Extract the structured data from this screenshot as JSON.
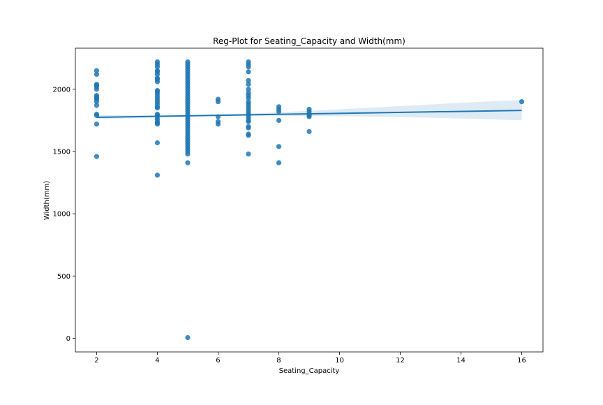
{
  "chart_data": {
    "type": "scatter",
    "title": "Reg-Plot for Seating_Capacity and Width(mm)",
    "xlabel": "Seating_Capacity",
    "ylabel": "Width(mm)",
    "xlim": [
      1.3,
      16.7
    ],
    "ylim": [
      -110,
      2330
    ],
    "xticks": [
      2,
      4,
      6,
      8,
      10,
      12,
      14,
      16
    ],
    "yticks": [
      0,
      500,
      1000,
      1500,
      2000
    ],
    "grid": false,
    "legend": "none",
    "colors": {
      "points": "#1f77b4",
      "line": "#1f77b4",
      "band": "#1f77b4"
    },
    "points": [
      [
        2,
        2150
      ],
      [
        2,
        2120
      ],
      [
        2,
        2040
      ],
      [
        2,
        2030
      ],
      [
        2,
        2020
      ],
      [
        2,
        2000
      ],
      [
        2,
        1950
      ],
      [
        2,
        1940
      ],
      [
        2,
        1930
      ],
      [
        2,
        1920
      ],
      [
        2,
        1900
      ],
      [
        2,
        1870
      ],
      [
        2,
        1800
      ],
      [
        2,
        1790
      ],
      [
        2,
        1720
      ],
      [
        2,
        1460
      ],
      [
        4,
        2220
      ],
      [
        4,
        2200
      ],
      [
        4,
        2180
      ],
      [
        4,
        2150
      ],
      [
        4,
        2140
      ],
      [
        4,
        2120
      ],
      [
        4,
        2090
      ],
      [
        4,
        2080
      ],
      [
        4,
        2060
      ],
      [
        4,
        1990
      ],
      [
        4,
        1980
      ],
      [
        4,
        1960
      ],
      [
        4,
        1940
      ],
      [
        4,
        1920
      ],
      [
        4,
        1900
      ],
      [
        4,
        1880
      ],
      [
        4,
        1860
      ],
      [
        4,
        1850
      ],
      [
        4,
        1800
      ],
      [
        4,
        1790
      ],
      [
        4,
        1780
      ],
      [
        4,
        1760
      ],
      [
        4,
        1740
      ],
      [
        4,
        1730
      ],
      [
        4,
        1720
      ],
      [
        4,
        1570
      ],
      [
        4,
        1310
      ],
      [
        5,
        2220
      ],
      [
        5,
        2200
      ],
      [
        5,
        2180
      ],
      [
        5,
        2160
      ],
      [
        5,
        2140
      ],
      [
        5,
        2120
      ],
      [
        5,
        2100
      ],
      [
        5,
        2080
      ],
      [
        5,
        2060
      ],
      [
        5,
        2040
      ],
      [
        5,
        2020
      ],
      [
        5,
        2000
      ],
      [
        5,
        1980
      ],
      [
        5,
        1960
      ],
      [
        5,
        1940
      ],
      [
        5,
        1920
      ],
      [
        5,
        1900
      ],
      [
        5,
        1880
      ],
      [
        5,
        1860
      ],
      [
        5,
        1840
      ],
      [
        5,
        1820
      ],
      [
        5,
        1800
      ],
      [
        5,
        1780
      ],
      [
        5,
        1760
      ],
      [
        5,
        1740
      ],
      [
        5,
        1720
      ],
      [
        5,
        1700
      ],
      [
        5,
        1680
      ],
      [
        5,
        1660
      ],
      [
        5,
        1640
      ],
      [
        5,
        1620
      ],
      [
        5,
        1600
      ],
      [
        5,
        1580
      ],
      [
        5,
        1560
      ],
      [
        5,
        1540
      ],
      [
        5,
        1520
      ],
      [
        5,
        1500
      ],
      [
        5,
        1480
      ],
      [
        5,
        1410
      ],
      [
        5,
        5
      ],
      [
        6,
        1920
      ],
      [
        6,
        1900
      ],
      [
        6,
        1780
      ],
      [
        6,
        1740
      ],
      [
        6,
        1720
      ],
      [
        7,
        2220
      ],
      [
        7,
        2200
      ],
      [
        7,
        2180
      ],
      [
        7,
        2140
      ],
      [
        7,
        2070
      ],
      [
        7,
        2040
      ],
      [
        7,
        2000
      ],
      [
        7,
        1970
      ],
      [
        7,
        1950
      ],
      [
        7,
        1930
      ],
      [
        7,
        1900
      ],
      [
        7,
        1880
      ],
      [
        7,
        1860
      ],
      [
        7,
        1840
      ],
      [
        7,
        1820
      ],
      [
        7,
        1800
      ],
      [
        7,
        1790
      ],
      [
        7,
        1770
      ],
      [
        7,
        1750
      ],
      [
        7,
        1740
      ],
      [
        7,
        1700
      ],
      [
        7,
        1690
      ],
      [
        7,
        1640
      ],
      [
        7,
        1630
      ],
      [
        7,
        1480
      ],
      [
        8,
        1860
      ],
      [
        8,
        1840
      ],
      [
        8,
        1820
      ],
      [
        8,
        1750
      ],
      [
        8,
        1540
      ],
      [
        8,
        1410
      ],
      [
        9,
        1840
      ],
      [
        9,
        1820
      ],
      [
        9,
        1800
      ],
      [
        9,
        1790
      ],
      [
        9,
        1780
      ],
      [
        9,
        1660
      ],
      [
        16,
        1900
      ]
    ],
    "regression": {
      "x": [
        2,
        16
      ],
      "y": [
        1775,
        1830
      ]
    },
    "confidence_band": {
      "x": [
        2,
        3,
        4,
        5,
        6,
        7,
        8,
        9,
        10,
        11,
        12,
        13,
        14,
        15,
        16
      ],
      "upper": [
        1792,
        1790,
        1790,
        1792,
        1797,
        1805,
        1815,
        1827,
        1839,
        1852,
        1865,
        1878,
        1891,
        1903,
        1915
      ],
      "lower": [
        1758,
        1766,
        1774,
        1782,
        1785,
        1787,
        1787,
        1785,
        1783,
        1780,
        1776,
        1771,
        1765,
        1758,
        1750
      ]
    }
  }
}
